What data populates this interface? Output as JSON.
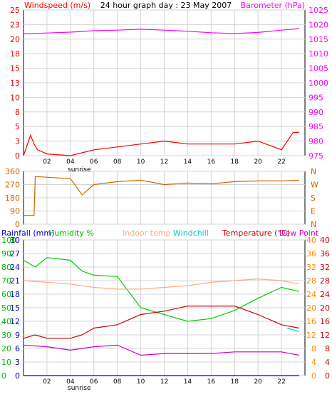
{
  "chart_data": [
    {
      "type": "line",
      "title": "24 hour graph day : 23 May 2007",
      "left_axis_label": "Windspeed (m/s)",
      "right_axis_label": "Barometer (hPa)",
      "x_ticks": [
        "02",
        "04",
        "06",
        "08",
        "10",
        "12",
        "14",
        "16",
        "18",
        "20",
        "22"
      ],
      "x_annotation": "sunrise",
      "left_ticks": [
        "0",
        "3",
        "5",
        "8",
        "10",
        "13",
        "15",
        "18",
        "20",
        "23",
        "25"
      ],
      "left_range": [
        0,
        25
      ],
      "right_ticks": [
        "975",
        "980",
        "985",
        "990",
        "995",
        "1000",
        "1005",
        "1010",
        "1015",
        "1020",
        "1025"
      ],
      "right_range": [
        975,
        1025
      ],
      "grid": true,
      "colors": {
        "windspeed": "#ff0000",
        "barometer": "#ff00ff",
        "gust": "#cc0000",
        "avg_wind": "#0000cc"
      },
      "series": [
        {
          "name": "Barometer (hPa)",
          "axis": "right",
          "x": [
            0,
            2,
            4,
            6,
            8,
            10,
            12,
            14,
            16,
            18,
            20,
            22,
            23.5
          ],
          "values": [
            1016.8,
            1017.1,
            1017.4,
            1017.9,
            1018.1,
            1018.4,
            1018.1,
            1017.7,
            1017.2,
            1016.9,
            1017.3,
            1018.1,
            1018.6
          ]
        },
        {
          "name": "Windspeed (m/s)",
          "axis": "left",
          "x": [
            0,
            0.6,
            0.9,
            1.2,
            2,
            4,
            6,
            8,
            10,
            12,
            14,
            16,
            18,
            20,
            22,
            23,
            23.5
          ],
          "values": [
            0,
            3.5,
            2,
            1,
            0.3,
            0,
            1,
            1.5,
            2,
            2.5,
            2,
            2,
            2,
            2.5,
            1,
            4,
            4
          ]
        }
      ]
    },
    {
      "type": "line",
      "right_axis_labels": [
        "N",
        "W",
        "S",
        "E",
        "N"
      ],
      "left_ticks": [
        "0",
        "90",
        "180",
        "270",
        "360"
      ],
      "left_range": [
        0,
        360
      ],
      "x_ticks": [
        "02",
        "04",
        "06",
        "08",
        "10",
        "12",
        "14",
        "16",
        "18",
        "20",
        "22"
      ],
      "grid": true,
      "colors": {
        "wind_dir": "#cc6600"
      },
      "series": [
        {
          "name": "Wind direction",
          "x": [
            0,
            0.9,
            1,
            2,
            4,
            5,
            6,
            8,
            10,
            12,
            14,
            16,
            18,
            20,
            22,
            23.5
          ],
          "values": [
            60,
            60,
            325,
            320,
            310,
            200,
            270,
            290,
            300,
            270,
            280,
            275,
            290,
            295,
            295,
            300
          ]
        }
      ]
    },
    {
      "type": "line",
      "legend": [
        "Rainfall (mm)",
        "Humidity %",
        "Indoor temp",
        "Windchill",
        "Temperature (°C)",
        "Dew Point"
      ],
      "x_ticks": [
        "02",
        "04",
        "06",
        "08",
        "10",
        "12",
        "14",
        "16",
        "18",
        "20",
        "22"
      ],
      "x_annotation": "sunrise",
      "humidity_ticks": [
        "0",
        "10",
        "20",
        "30",
        "40",
        "50",
        "60",
        "70",
        "80",
        "90",
        "100"
      ],
      "rain_ticks": [
        "0",
        "3",
        "6",
        "9",
        "12",
        "15",
        "18",
        "21",
        "24",
        "27",
        "30"
      ],
      "temp_ticks": [
        "0",
        "4",
        "8",
        "12",
        "16",
        "20",
        "24",
        "28",
        "32",
        "36",
        "40"
      ],
      "humidity_range": [
        0,
        100
      ],
      "temp_range": [
        0,
        40
      ],
      "grid": true,
      "colors": {
        "rain": "#0000cc",
        "humidity": "#00cc00",
        "indoor": "#ffaa88",
        "windchill": "#00cccc",
        "temperature": "#cc0000",
        "dewpoint": "#cc00cc",
        "temp_axis": "#cc0000",
        "indoor_axis": "#ff8800"
      },
      "series": [
        {
          "name": "Humidity %",
          "axis": "humidity",
          "x": [
            0,
            1,
            2,
            4,
            5,
            6,
            8,
            10,
            12,
            14,
            16,
            18,
            20,
            22,
            23.5
          ],
          "values": [
            85,
            80,
            87,
            85,
            77,
            74,
            73,
            50,
            45,
            40,
            42,
            48,
            57,
            65,
            62
          ]
        },
        {
          "name": "Indoor temp",
          "axis": "temp",
          "x": [
            0,
            2,
            4,
            6,
            8,
            10,
            12,
            14,
            16,
            18,
            20,
            22,
            23.5
          ],
          "values": [
            28,
            27.5,
            27,
            26,
            25.5,
            25.5,
            26,
            26.5,
            27.5,
            28,
            28.5,
            28,
            27
          ]
        },
        {
          "name": "Temperature (°C)",
          "axis": "temp",
          "x": [
            0,
            1,
            2,
            4,
            5,
            6,
            8,
            10,
            12,
            14,
            16,
            18,
            20,
            22,
            23.5
          ],
          "values": [
            11,
            12,
            11,
            11,
            12,
            14,
            15,
            18,
            19,
            20.5,
            20.5,
            20.5,
            18,
            15,
            14
          ]
        },
        {
          "name": "Dew Point",
          "axis": "temp",
          "x": [
            0,
            2,
            4,
            6,
            8,
            10,
            12,
            14,
            16,
            18,
            20,
            22,
            23.5
          ],
          "values": [
            9,
            8.5,
            7.5,
            8.5,
            9,
            6,
            6.5,
            6.5,
            6.5,
            7,
            7,
            7,
            6
          ]
        },
        {
          "name": "Windchill",
          "axis": "temp",
          "x": [
            22.5,
            23,
            23.5
          ],
          "values": [
            14,
            13.5,
            13
          ]
        },
        {
          "name": "Rainfall (mm)",
          "axis": "rain",
          "x": [
            0,
            23.5
          ],
          "values": [
            0,
            0
          ]
        }
      ]
    }
  ]
}
